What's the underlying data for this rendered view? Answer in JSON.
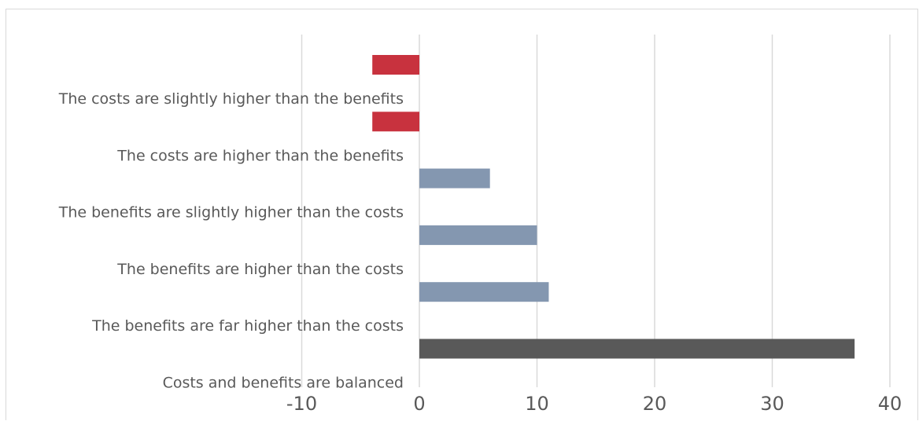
{
  "chart_data": {
    "type": "bar",
    "orientation": "horizontal",
    "categories": [
      "The costs are slightly higher than the benefits",
      "The costs are higher than the benefits",
      "The benefits are slightly higher than the costs",
      "The benefits are higher than the costs",
      "The benefits are far higher than the costs",
      "Costs and benefits are balanced"
    ],
    "values": [
      -4,
      -4,
      6,
      10,
      11,
      37
    ],
    "bar_colors": [
      "#c8323e",
      "#c8323e",
      "#8497b0",
      "#8497b0",
      "#8497b0",
      "#595959"
    ],
    "xlim": [
      -10,
      40
    ],
    "xticks": [
      -10,
      0,
      10,
      20,
      30,
      40
    ],
    "xtick_labels": [
      "-10",
      "0",
      "10",
      "20",
      "30",
      "40"
    ],
    "grid": true,
    "title": "",
    "xlabel": "",
    "ylabel": ""
  }
}
